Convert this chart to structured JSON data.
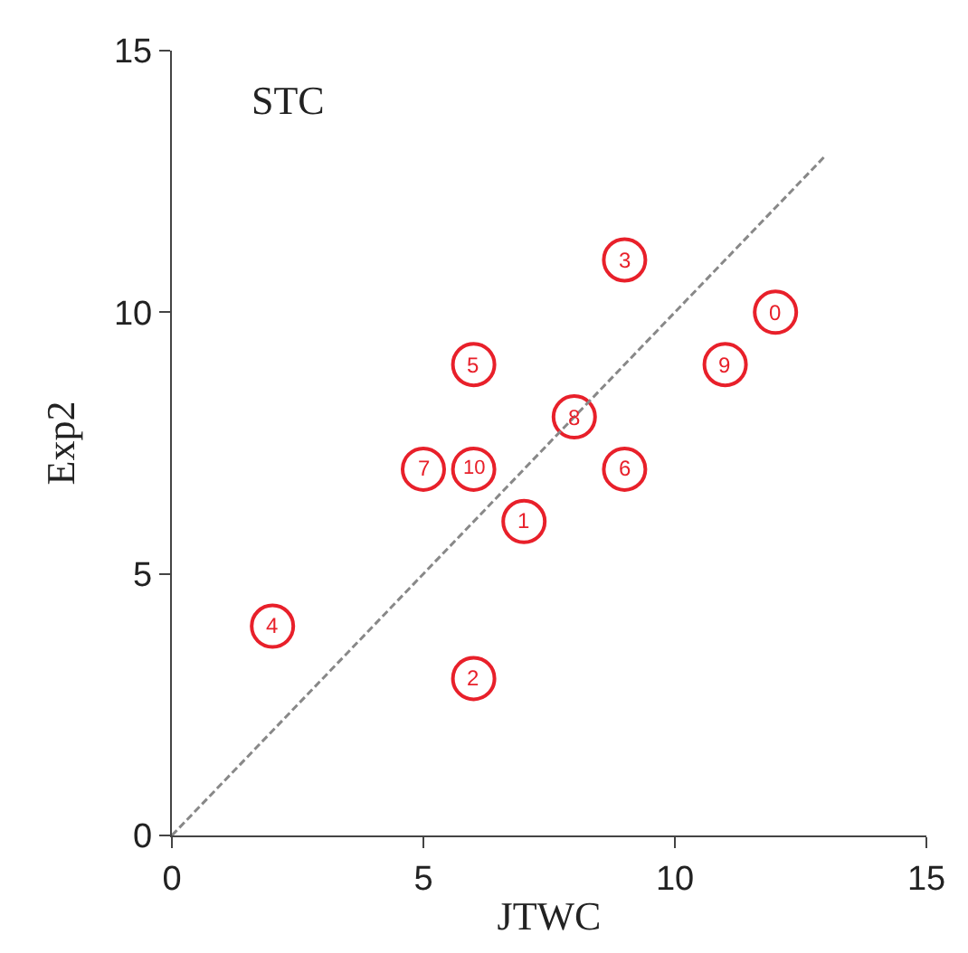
{
  "chart_data": {
    "type": "scatter",
    "xlabel": "JTWC",
    "ylabel": "Exp2",
    "xlim": [
      0,
      15
    ],
    "ylim": [
      0,
      15
    ],
    "xticks": [
      0,
      5,
      10,
      15
    ],
    "yticks": [
      0,
      5,
      10,
      15
    ],
    "series": [
      {
        "color": "#e8202a",
        "marker": "circle",
        "x": [
          12,
          7,
          6,
          9,
          2,
          6,
          9,
          5,
          8,
          11,
          6
        ],
        "values": [
          10,
          6,
          3,
          11,
          4,
          9,
          7,
          7,
          8,
          9,
          7
        ]
      },
      {
        "type": "line",
        "color": "#888888",
        "marker": "none",
        "line_style": "dashed",
        "x": [
          0,
          13
        ],
        "values": [
          0,
          13
        ]
      }
    ],
    "annotations": [
      "STC",
      {
        "text": "0",
        "x": 12,
        "y": 10
      },
      {
        "text": "1",
        "x": 7,
        "y": 6
      },
      {
        "text": "2",
        "x": 6,
        "y": 3
      },
      {
        "text": "3",
        "x": 9,
        "y": 11
      },
      {
        "text": "4",
        "x": 2,
        "y": 4
      },
      {
        "text": "5",
        "x": 6,
        "y": 9
      },
      {
        "text": "6",
        "x": 9,
        "y": 7
      },
      {
        "text": "7",
        "x": 5,
        "y": 7
      },
      {
        "text": "8",
        "x": 8,
        "y": 8
      },
      {
        "text": "9",
        "x": 11,
        "y": 9
      },
      {
        "text": "10",
        "x": 6,
        "y": 7
      }
    ]
  }
}
